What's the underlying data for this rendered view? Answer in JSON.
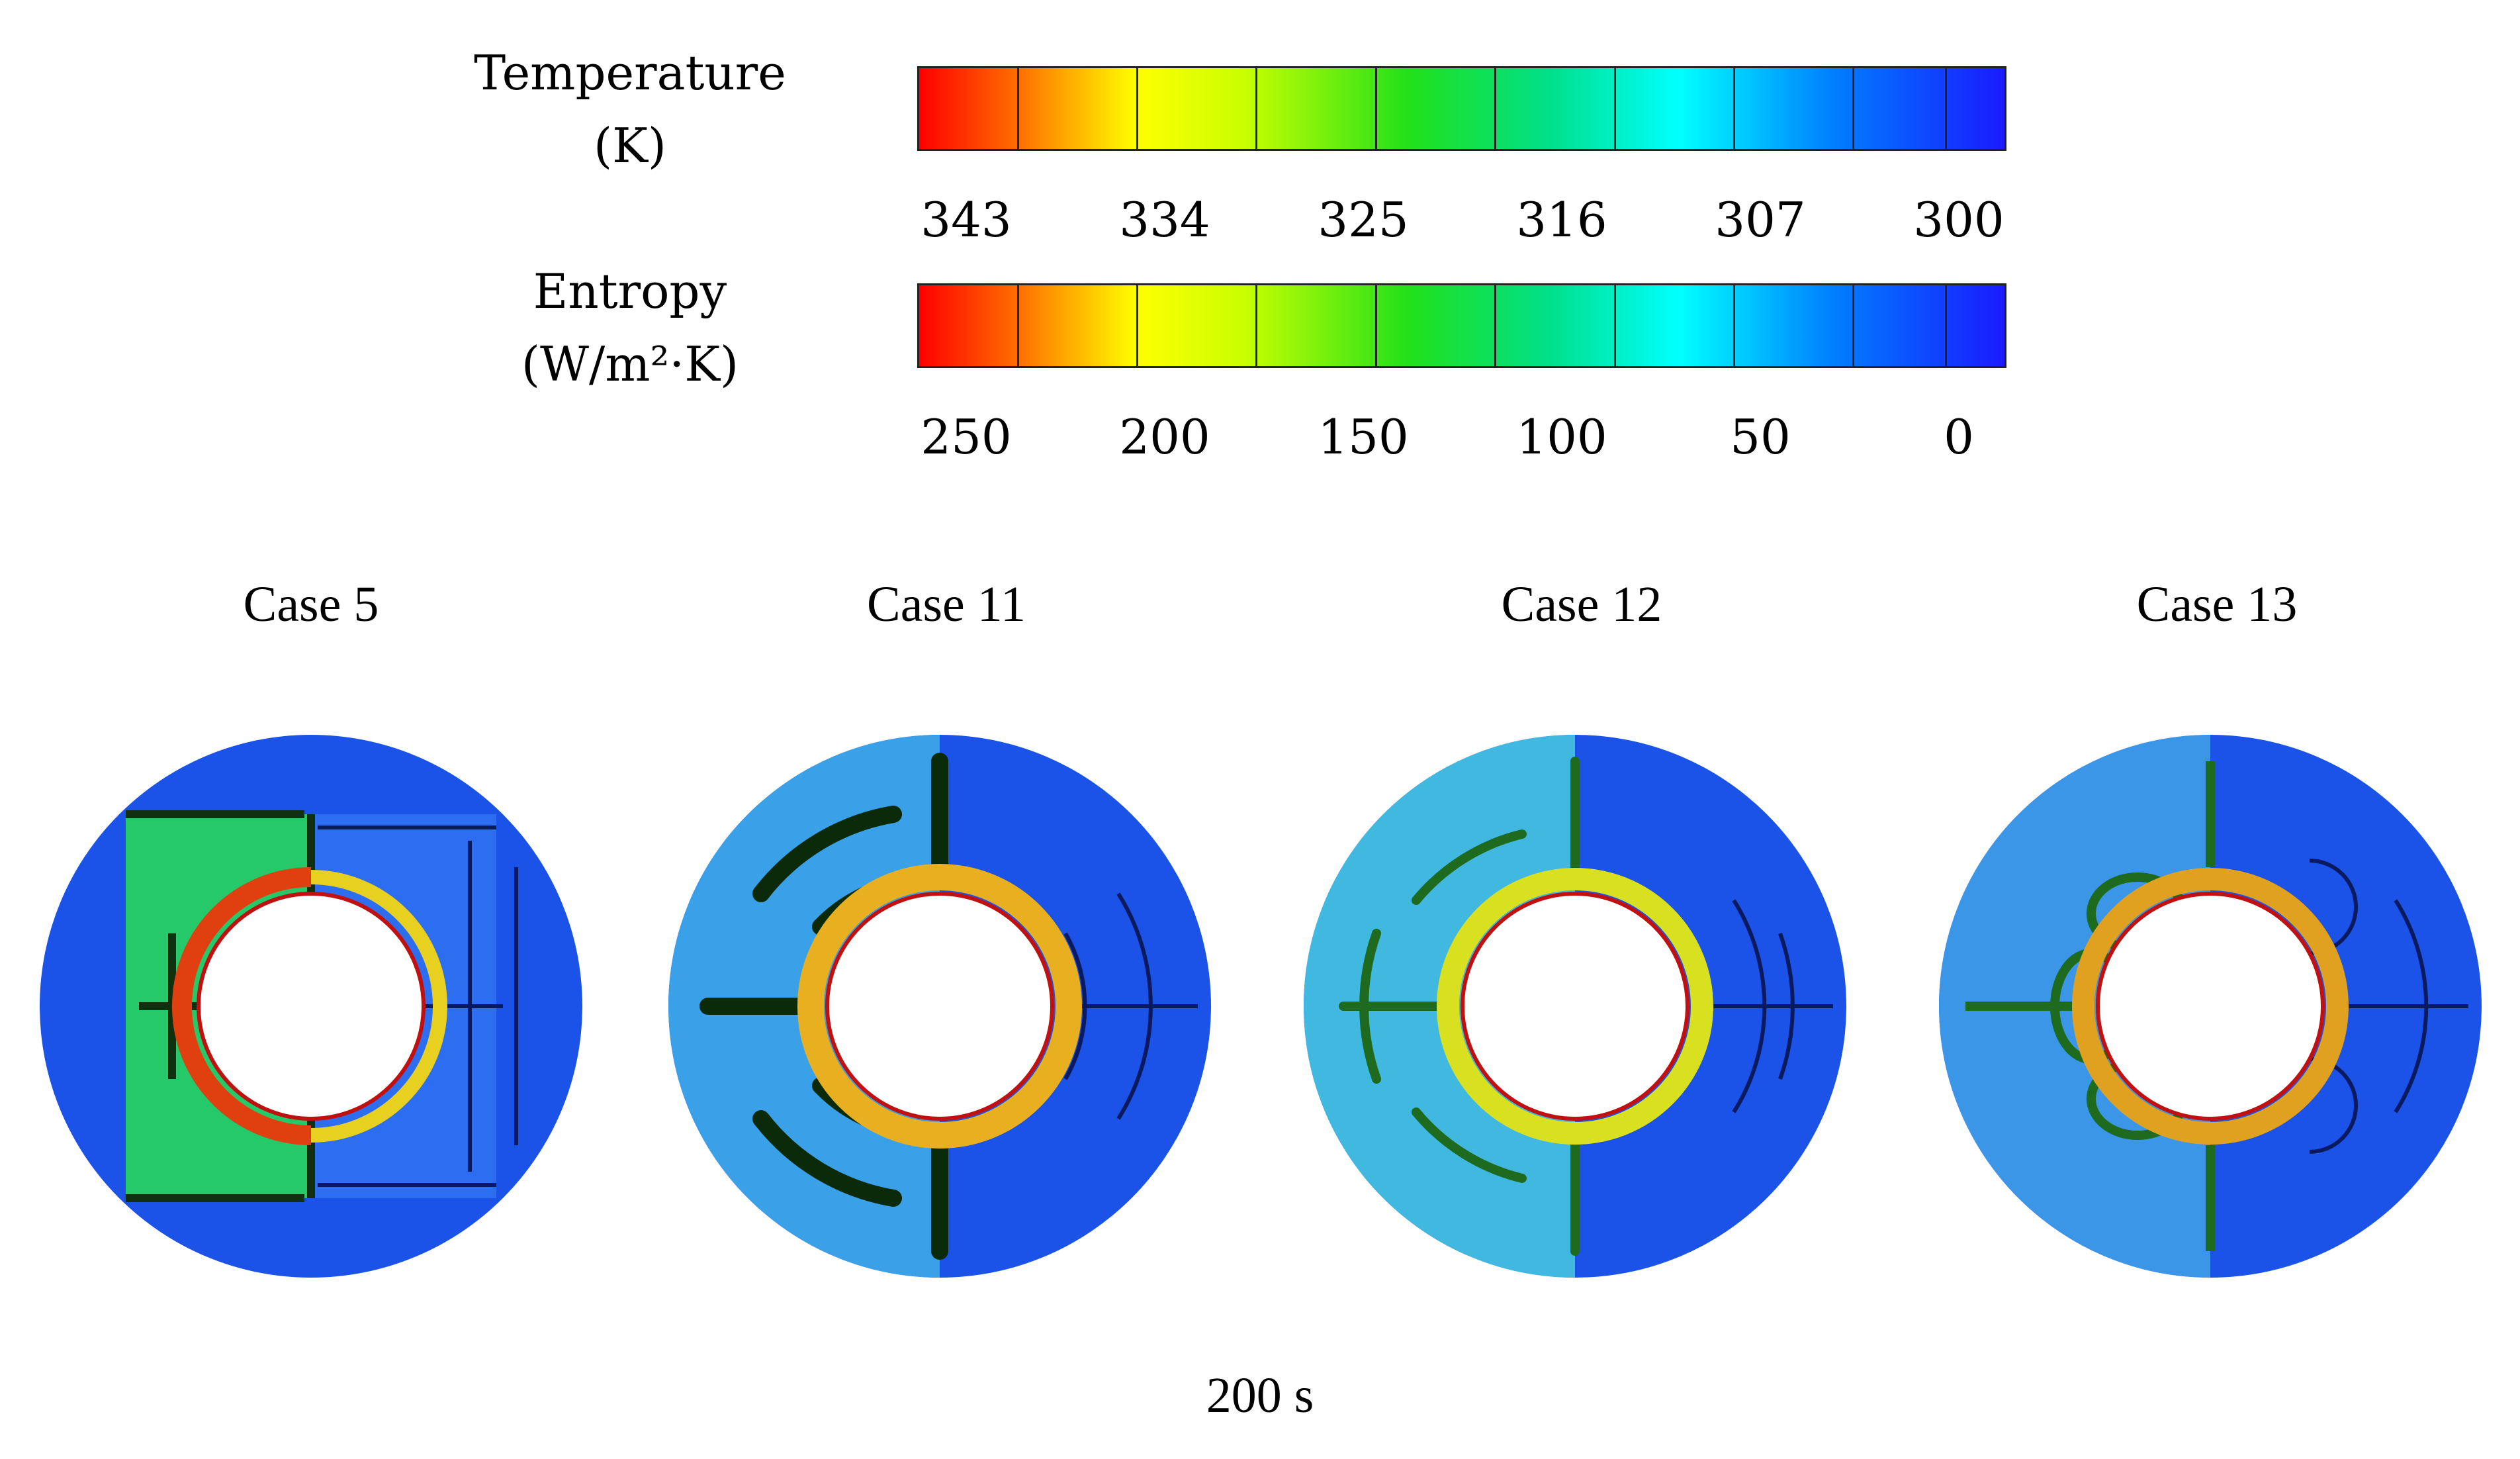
{
  "legends": {
    "temperature": {
      "title_line1": "Temperature",
      "title_line2": "(K)",
      "ticks": [
        "343",
        "334",
        "325",
        "316",
        "307",
        "300"
      ]
    },
    "entropy": {
      "title_line1": "Entropy",
      "title_line2": "(W/m²·K)",
      "ticks": [
        "250",
        "200",
        "150",
        "100",
        "50",
        "0"
      ]
    },
    "colormap": [
      "#ff0000",
      "#ff7a00",
      "#ffff00",
      "#c8ff00",
      "#22e01a",
      "#00e08a",
      "#00ffff",
      "#0080ff",
      "#1a1aff"
    ]
  },
  "cases": [
    {
      "label": "Case 5",
      "fin_style": "rectangular"
    },
    {
      "label": "Case 11",
      "fin_style": "arc"
    },
    {
      "label": "Case 12",
      "fin_style": "arc-thin"
    },
    {
      "label": "Case 13",
      "fin_style": "arc-lobed"
    }
  ],
  "time_label": "200 s"
}
